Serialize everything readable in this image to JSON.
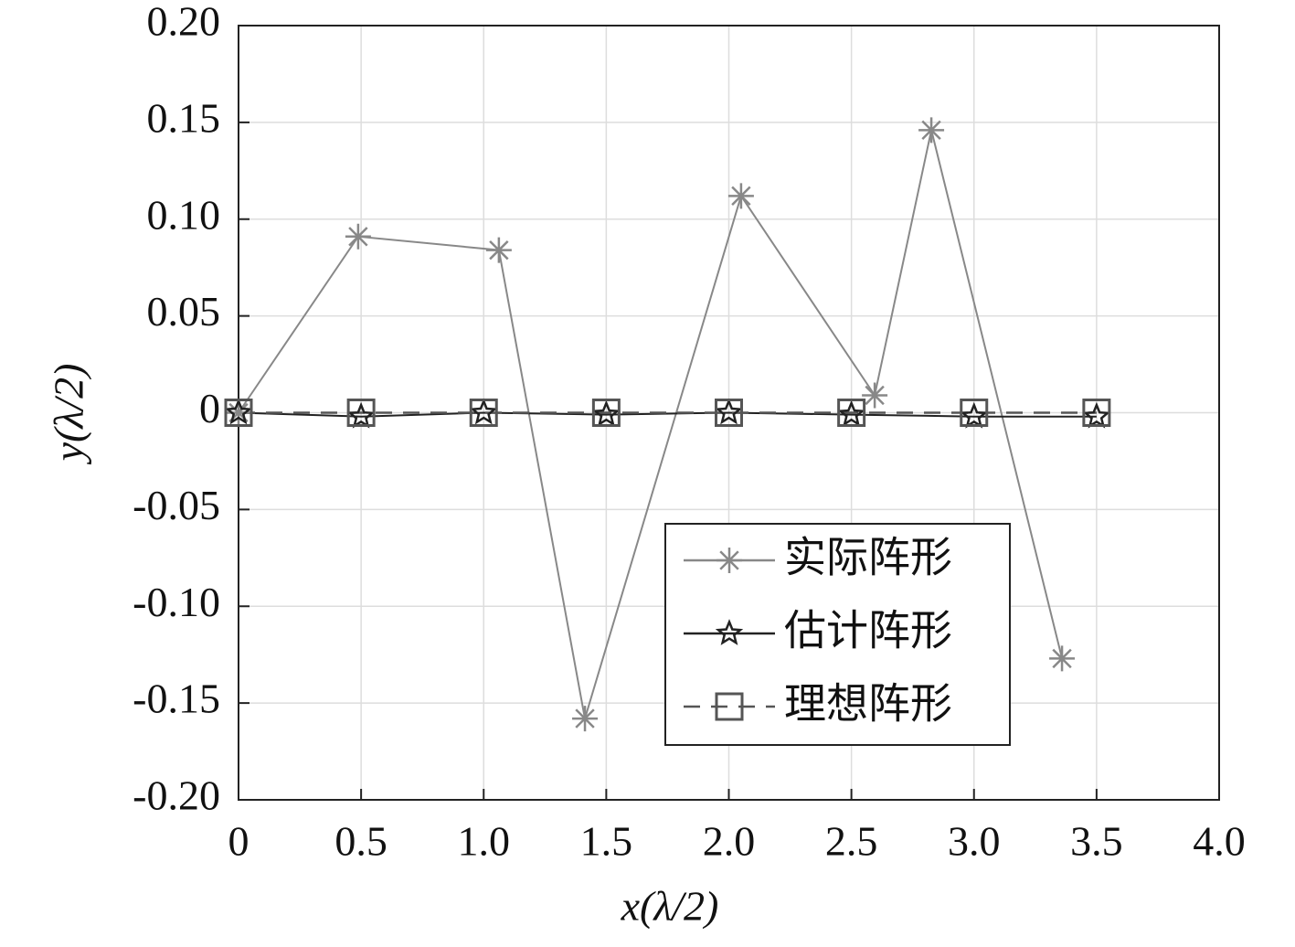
{
  "chart_data": {
    "type": "line",
    "xlabel": "x(λ/2)",
    "ylabel": "y(λ/2)",
    "xlim": [
      0,
      4
    ],
    "ylim": [
      -0.2,
      0.2
    ],
    "xticks": [
      0,
      0.5,
      {
        "value": 1,
        "label": "1.0"
      },
      1.5,
      {
        "value": 2,
        "label": "2.0"
      },
      2.5,
      {
        "value": 3,
        "label": "3.0"
      },
      3.5,
      {
        "value": 4,
        "label": "4.0"
      }
    ],
    "yticks": [
      {
        "value": -0.2,
        "label": "-0.20"
      },
      -0.15,
      {
        "value": -0.1,
        "label": "-0.10"
      },
      -0.05,
      0,
      0.05,
      {
        "value": 0.1,
        "label": "0.10"
      },
      0.15,
      {
        "value": 0.2,
        "label": "0.20"
      }
    ],
    "grid": true,
    "legend": "lower right",
    "series": [
      {
        "name": "实际阵形",
        "color": "#888888",
        "marker": "asterisk",
        "linestyle": "solid",
        "x": [
          0,
          0.488,
          1.062,
          1.413,
          2.05,
          2.595,
          2.826,
          3.359
        ],
        "values": [
          0,
          0.091,
          0.084,
          -0.158,
          0.112,
          0.009,
          0.146,
          -0.127
        ]
      },
      {
        "name": "估计阵形",
        "color": "#222222",
        "marker": "star",
        "linestyle": "solid",
        "x": [
          0,
          0.5,
          1,
          1.5,
          2,
          2.5,
          3,
          3.5
        ],
        "values": [
          0,
          -0.002,
          0,
          -0.001,
          0,
          -0.001,
          -0.002,
          -0.002
        ]
      },
      {
        "name": "理想阵形",
        "color": "#555555",
        "marker": "square",
        "linestyle": "dashed",
        "x": [
          0,
          0.5,
          1,
          1.5,
          2,
          2.5,
          3,
          3.5
        ],
        "values": [
          0,
          0,
          0,
          0,
          0,
          0,
          0,
          0
        ]
      }
    ]
  }
}
